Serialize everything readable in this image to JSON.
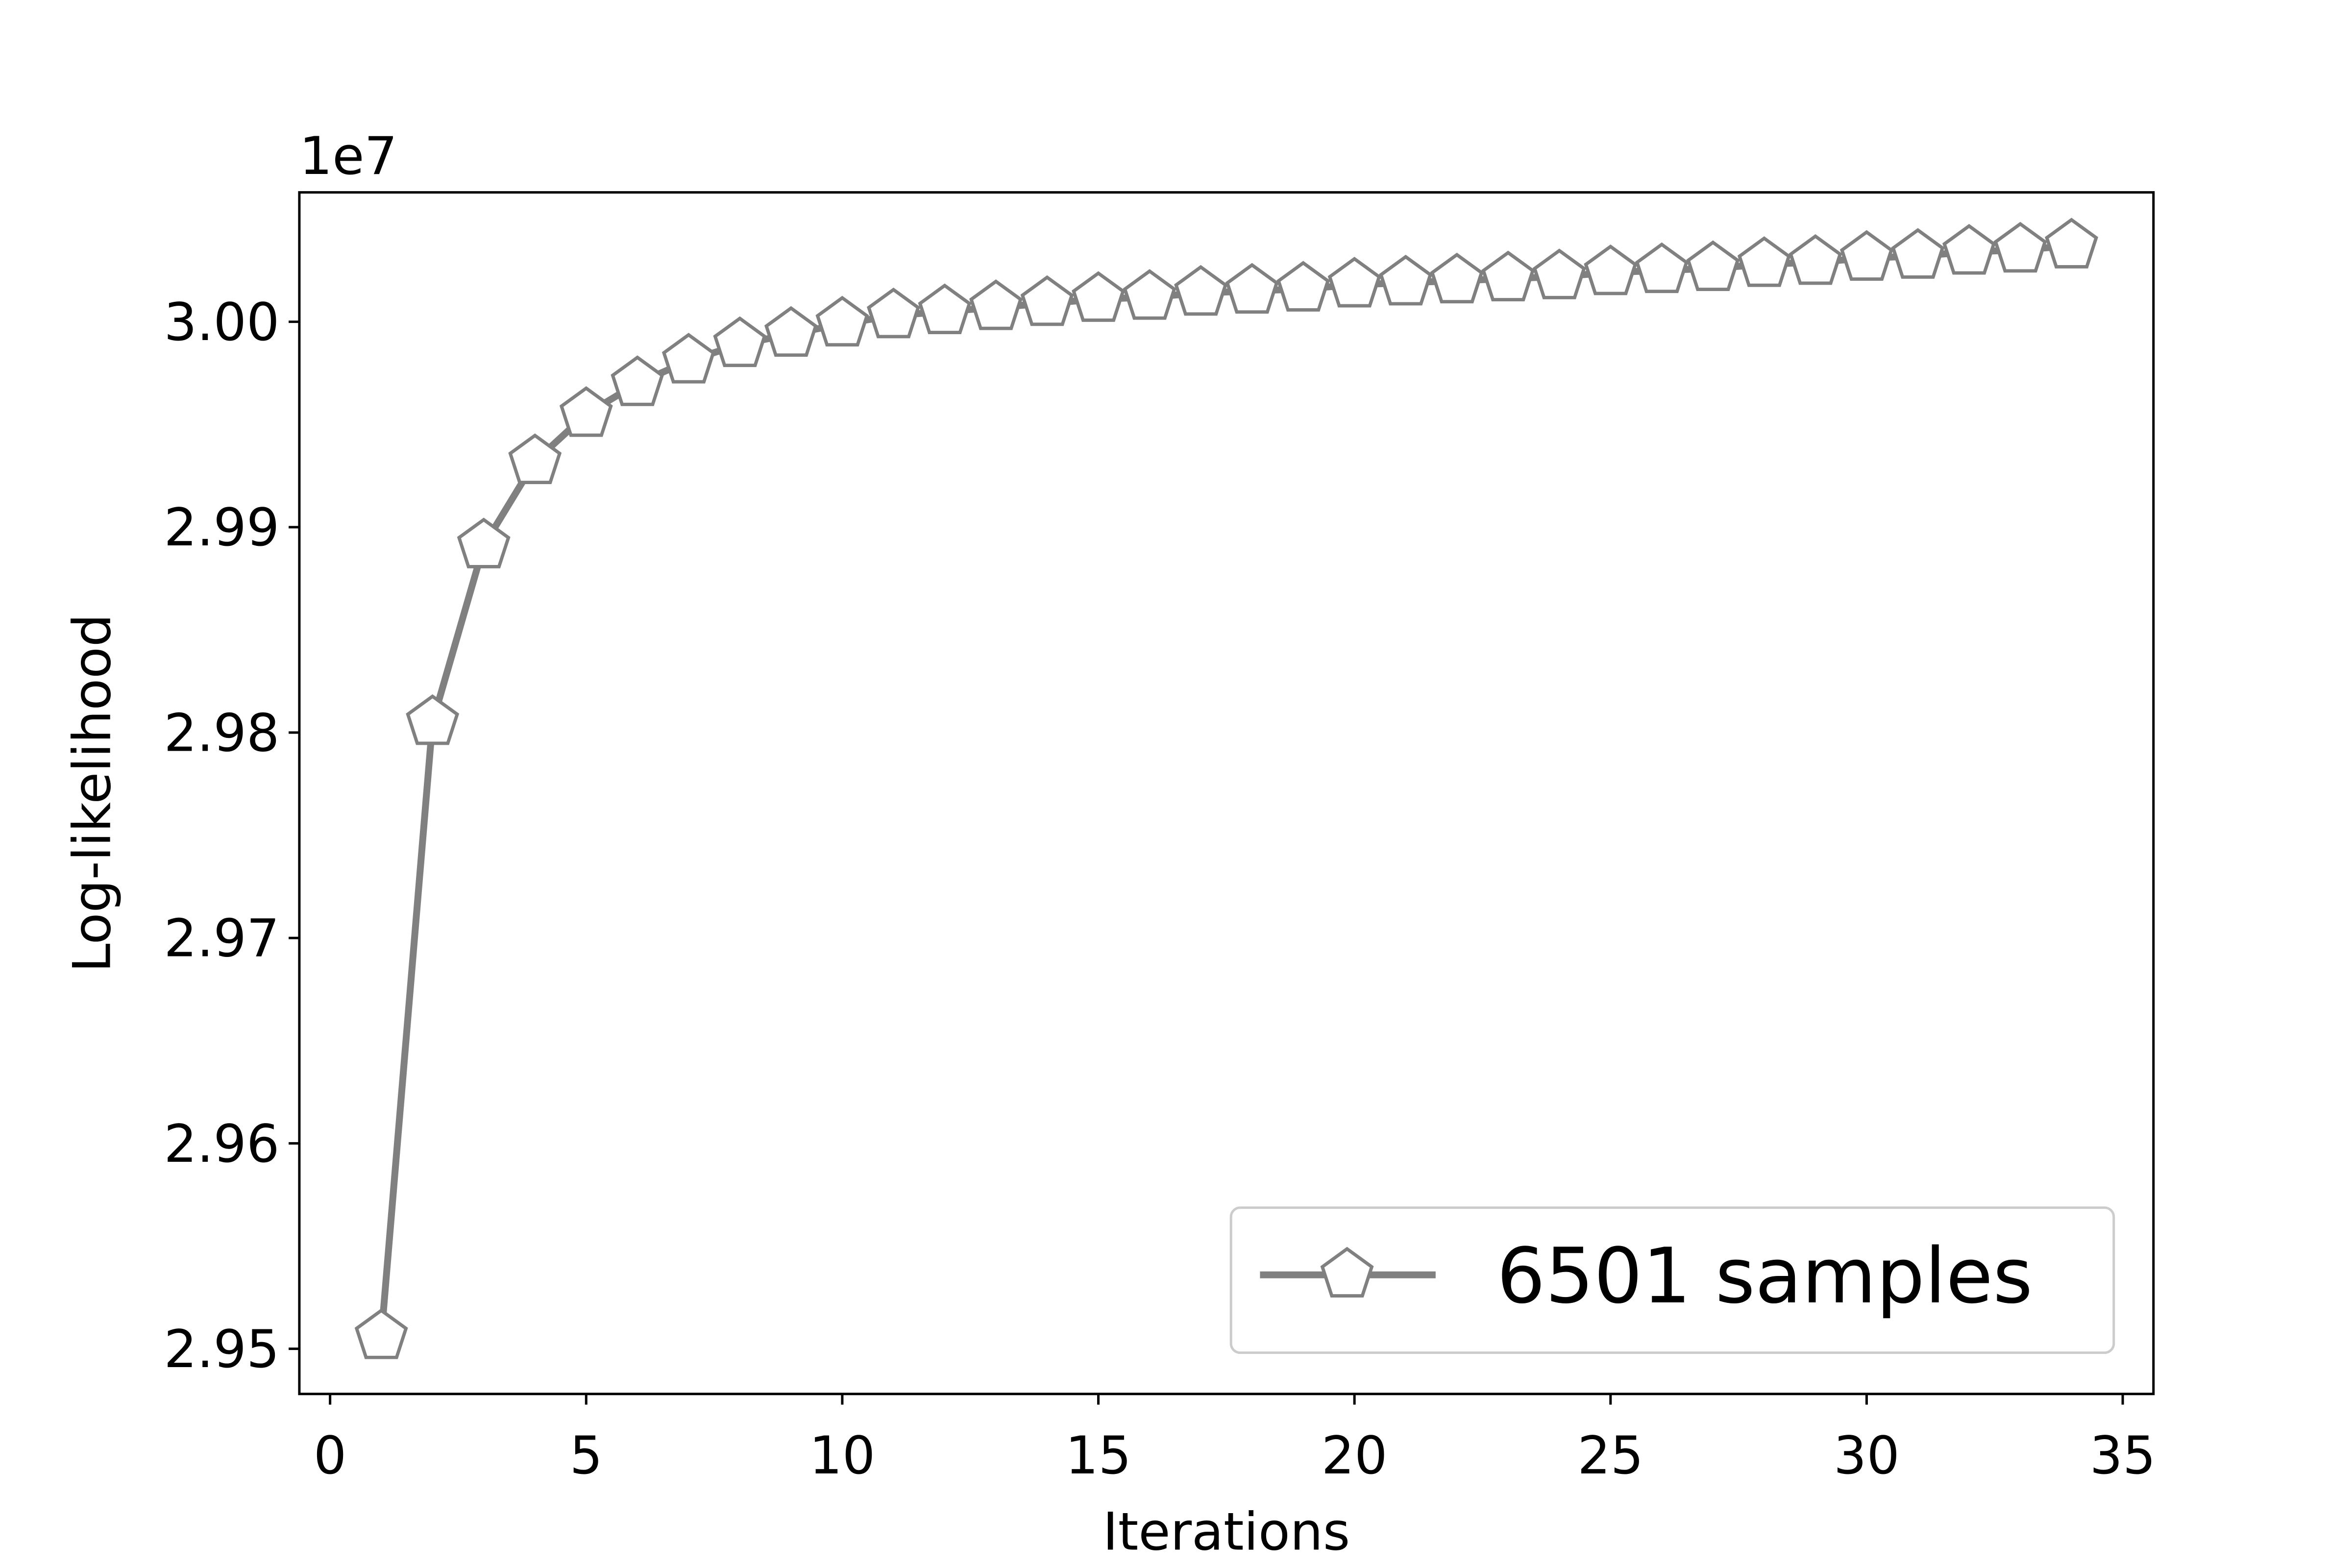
{
  "chart_data": {
    "type": "line",
    "title": "",
    "xlabel": "Iterations",
    "ylabel": "Log-likelihood",
    "y_offset_label": "1e7",
    "xlim": [
      -0.6,
      35.6
    ],
    "ylim": [
      2.9478,
      3.0063
    ],
    "xticks": [
      0,
      5,
      10,
      15,
      20,
      25,
      30,
      35
    ],
    "xtick_labels": [
      "0",
      "5",
      "10",
      "15",
      "20",
      "25",
      "30",
      "35"
    ],
    "yticks": [
      2.95,
      2.96,
      2.97,
      2.98,
      2.99,
      3.0
    ],
    "ytick_labels": [
      "2.95",
      "2.96",
      "2.97",
      "2.98",
      "2.99",
      "3.00"
    ],
    "grid": false,
    "legend_position": "lower-right",
    "series": [
      {
        "name": "6501 samples",
        "color": "#808080",
        "marker": "pentagon",
        "x": [
          1,
          2,
          3,
          4,
          5,
          6,
          7,
          8,
          9,
          10,
          11,
          12,
          13,
          14,
          15,
          16,
          17,
          18,
          19,
          20,
          21,
          22,
          23,
          24,
          25,
          26,
          27,
          28,
          29,
          30,
          31,
          32,
          33,
          34
        ],
        "y": [
          2.9506,
          2.9805,
          2.9891,
          2.9932,
          2.9955,
          2.997,
          2.9981,
          2.9989,
          2.9994,
          2.9999,
          3.0003,
          3.0005,
          3.0007,
          3.0009,
          3.0011,
          3.0012,
          3.0014,
          3.0015,
          3.0016,
          3.0018,
          3.0019,
          3.002,
          3.0021,
          3.0022,
          3.0024,
          3.0025,
          3.0026,
          3.0028,
          3.0029,
          3.0031,
          3.0032,
          3.0034,
          3.0035,
          3.0037
        ]
      }
    ]
  }
}
